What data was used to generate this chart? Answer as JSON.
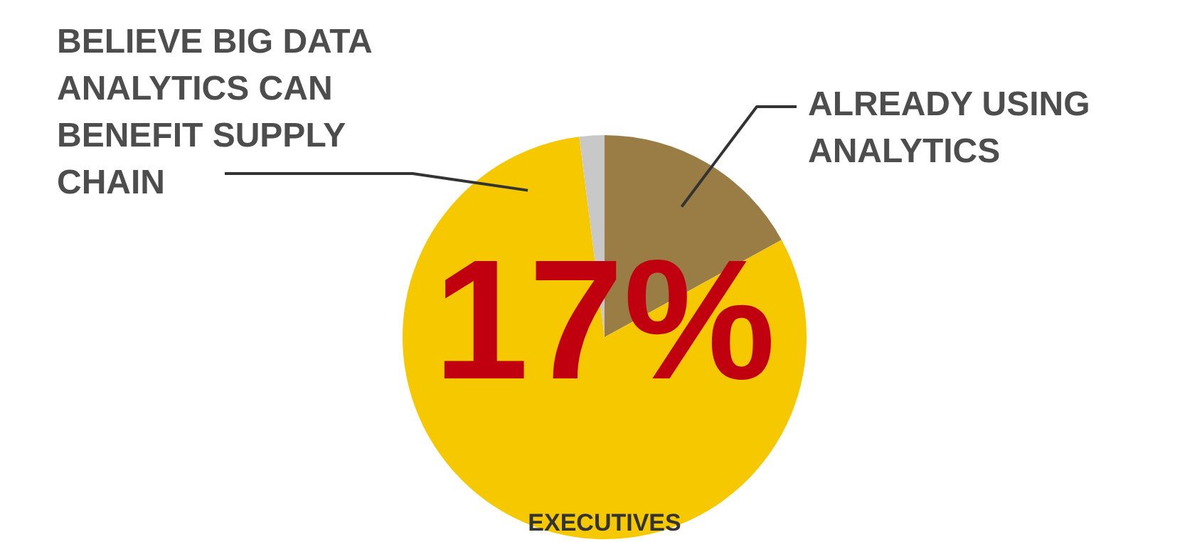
{
  "chart_data": {
    "type": "pie",
    "categories": [
      "ALREADY USING ANALYTICS",
      "BELIEVE BIG DATA ANALYTICS CAN BENEFIT SUPPLY CHAIN",
      null
    ],
    "values": [
      17,
      81,
      2
    ],
    "colors": [
      "#9a7d45",
      "#f5c800",
      "#c8c8c8"
    ],
    "value_labels": [
      "17%",
      null,
      null
    ],
    "annotations": [
      "EXECUTIVES"
    ]
  }
}
